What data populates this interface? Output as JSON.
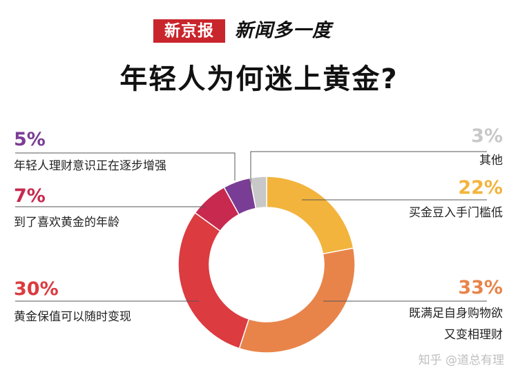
{
  "header": {
    "brand_box": "新京报",
    "brand_text": "新闻多一度"
  },
  "chart_data": {
    "type": "pie",
    "style": "donut",
    "title": "年轻人为何迷上黄金?",
    "slices": [
      {
        "label": "买金豆入手门槛低",
        "value": 22,
        "display": "22%",
        "color": "#f2b43c"
      },
      {
        "label": "既满足自身购物欲又变相理财",
        "lines": [
          "既满足自身购物欲",
          "又变相理财"
        ],
        "value": 33,
        "display": "33%",
        "color": "#e8844a"
      },
      {
        "label": "黄金保值可以随时变现",
        "value": 30,
        "display": "30%",
        "color": "#dc3b40"
      },
      {
        "label": "到了喜欢黄金的年龄",
        "value": 7,
        "display": "7%",
        "color": "#c8294f"
      },
      {
        "label": "年轻人理财意识正在逐步增强",
        "value": 5,
        "display": "5%",
        "color": "#7a3d95"
      },
      {
        "label": "其他",
        "value": 3,
        "display": "3%",
        "color": "#c8c8c8"
      }
    ]
  },
  "watermark": "知乎 @道总有理"
}
